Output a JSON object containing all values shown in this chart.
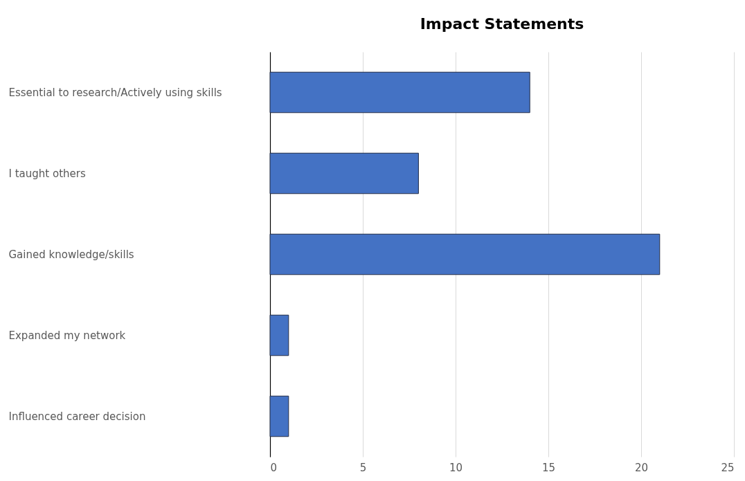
{
  "chart_data": {
    "type": "bar",
    "title": "Impact Statements",
    "orientation": "horizontal",
    "categories": [
      "Essential to research/Actively using skills",
      "I taught others",
      "Gained knowledge/skills",
      "Expanded my network",
      "Influenced career decision"
    ],
    "values": [
      14,
      8,
      21,
      1,
      1
    ],
    "color": "#4472c4",
    "xlim": [
      0,
      25
    ],
    "xticks": [
      0,
      5,
      10,
      15,
      20,
      25
    ],
    "grid": "x"
  }
}
